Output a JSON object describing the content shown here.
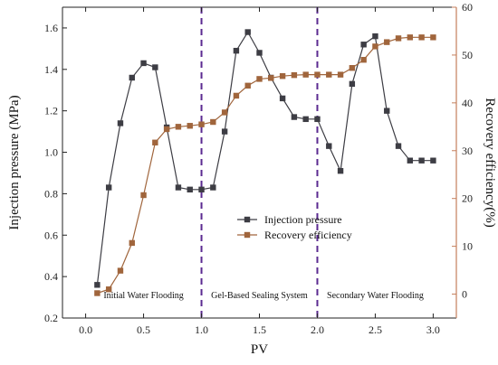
{
  "chart_data": {
    "type": "line",
    "xlabel": "PV",
    "ylabel_left": "Injection pressure (MPa)",
    "ylabel_right": "Recovery efficiency(%)",
    "xlim": [
      -0.2,
      3.2
    ],
    "ylim_left": [
      0.2,
      1.7
    ],
    "ylim_right": [
      -5,
      60
    ],
    "x_ticks": [
      0.0,
      0.5,
      1.0,
      1.5,
      2.0,
      2.5,
      3.0
    ],
    "x_tick_labels": [
      "0.0",
      "0.5",
      "1.0",
      "1.5",
      "2.0",
      "2.5",
      "3.0"
    ],
    "y_left_ticks": [
      0.2,
      0.4,
      0.6,
      0.8,
      1.0,
      1.2,
      1.4,
      1.6
    ],
    "y_left_tick_labels": [
      "0.2",
      "0.4",
      "0.6",
      "0.8",
      "1.0",
      "1.2",
      "1.4",
      "1.6"
    ],
    "y_right_ticks": [
      0,
      10,
      20,
      30,
      40,
      50,
      60
    ],
    "y_right_tick_labels": [
      "0",
      "10",
      "20",
      "30",
      "40",
      "50",
      "60"
    ],
    "colors": {
      "pressure": "#3d3d44",
      "recovery": "#a0653c",
      "right_axis": "#c47f5c",
      "divider": "#5b2a91"
    },
    "dividers": [
      1.0,
      2.0
    ],
    "phases": [
      {
        "label": "Initial Water Flooding",
        "x": 0.5
      },
      {
        "label": "Gel-Based Sealing System",
        "x": 1.5
      },
      {
        "label": "Secondary Water Flooding",
        "x": 2.5
      }
    ],
    "legend_position": "center-right",
    "series": [
      {
        "name": "Injection pressure",
        "axis": "left",
        "marker": "square",
        "x": [
          0.1,
          0.2,
          0.3,
          0.4,
          0.5,
          0.6,
          0.7,
          0.8,
          0.9,
          1.0,
          1.1,
          1.2,
          1.3,
          1.4,
          1.5,
          1.6,
          1.7,
          1.8,
          1.9,
          2.0,
          2.1,
          2.2,
          2.3,
          2.4,
          2.5,
          2.6,
          2.7,
          2.8,
          2.9,
          3.0
        ],
        "values": [
          0.36,
          0.83,
          1.14,
          1.36,
          1.43,
          1.41,
          1.12,
          0.83,
          0.82,
          0.82,
          0.83,
          1.1,
          1.49,
          1.58,
          1.48,
          1.36,
          1.26,
          1.17,
          1.16,
          1.16,
          1.03,
          0.91,
          1.33,
          1.52,
          1.56,
          1.2,
          1.03,
          0.96,
          0.96,
          0.96
        ]
      },
      {
        "name": "Recovery efficiency",
        "axis": "right",
        "marker": "square",
        "x": [
          0.1,
          0.2,
          0.3,
          0.4,
          0.5,
          0.6,
          0.7,
          0.8,
          0.9,
          1.0,
          1.1,
          1.2,
          1.3,
          1.4,
          1.5,
          1.6,
          1.7,
          1.8,
          1.9,
          2.0,
          2.1,
          2.2,
          2.3,
          2.4,
          2.5,
          2.6,
          2.7,
          2.8,
          2.9,
          3.0
        ],
        "values": [
          0.2,
          1.0,
          4.9,
          10.7,
          20.7,
          31.7,
          34.5,
          35.0,
          35.2,
          35.5,
          36.0,
          38.0,
          41.5,
          43.6,
          45.0,
          45.2,
          45.6,
          45.8,
          45.9,
          45.9,
          45.9,
          45.9,
          47.3,
          49.0,
          51.8,
          52.7,
          53.5,
          53.7,
          53.7,
          53.7
        ]
      }
    ]
  }
}
